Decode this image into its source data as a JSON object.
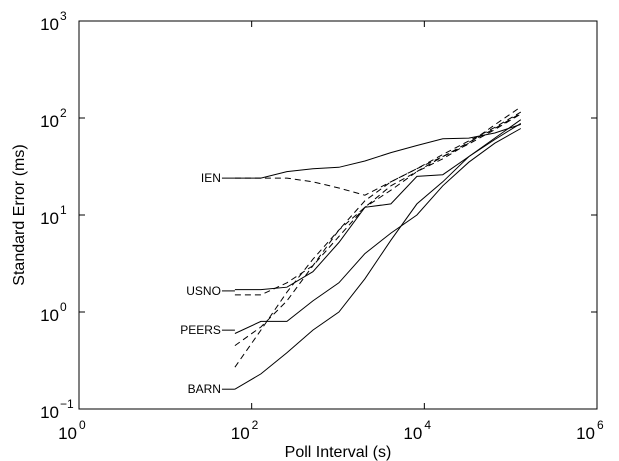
{
  "chart_data": {
    "type": "line",
    "title": "",
    "xlabel": "Poll Interval (s)",
    "ylabel": "Standard Error (ms)",
    "xscale": "log",
    "yscale": "log",
    "xlim": [
      1,
      1000000
    ],
    "ylim": [
      0.1,
      1000
    ],
    "grid": false,
    "legend": "none",
    "x_ticks": [
      {
        "base": "10",
        "exp": "0",
        "value": 1
      },
      {
        "base": "10",
        "exp": "2",
        "value": 100
      },
      {
        "base": "10",
        "exp": "4",
        "value": 10000
      },
      {
        "base": "10",
        "exp": "6",
        "value": 1000000
      }
    ],
    "y_ticks": [
      {
        "base": "10",
        "exp": "−1",
        "value": 0.1
      },
      {
        "base": "10",
        "exp": "0",
        "value": 1
      },
      {
        "base": "10",
        "exp": "1",
        "value": 10
      },
      {
        "base": "10",
        "exp": "2",
        "value": 100
      },
      {
        "base": "10",
        "exp": "3",
        "value": 1000
      }
    ],
    "annotations": [
      {
        "text": "IEN",
        "x": 64,
        "y": 24
      },
      {
        "text": "USNO",
        "x": 64,
        "y": 1.65
      },
      {
        "text": "PEERS",
        "x": 64,
        "y": 0.65
      },
      {
        "text": "BARN",
        "x": 64,
        "y": 0.16
      }
    ],
    "series": [
      {
        "style": "solid",
        "x": [
          64,
          128,
          256,
          512,
          1024,
          2048,
          4096,
          8192,
          16384,
          32768,
          65536,
          131072
        ],
        "y": [
          24,
          24,
          28,
          30,
          31,
          36,
          44,
          52,
          61,
          62,
          70,
          86
        ]
      },
      {
        "style": "dashed",
        "x": [
          64,
          128,
          256,
          512,
          1024,
          2048,
          4096,
          8192,
          16384,
          32768,
          65536,
          131072
        ],
        "y": [
          24,
          24,
          24,
          22,
          19,
          16,
          22,
          30,
          40,
          54,
          76,
          110
        ]
      },
      {
        "style": "solid",
        "x": [
          64,
          128,
          256,
          512,
          1024,
          2048,
          4096,
          8192,
          16384,
          32768,
          65536,
          131072
        ],
        "y": [
          1.7,
          1.7,
          1.8,
          2.6,
          5.2,
          12,
          13,
          25,
          26,
          40,
          62,
          96
        ]
      },
      {
        "style": "dashed",
        "x": [
          64,
          128,
          256,
          512,
          1024,
          2048,
          4096,
          8192,
          16384,
          32768,
          65536,
          131072
        ],
        "y": [
          1.5,
          1.5,
          2.0,
          3.0,
          6.0,
          12,
          18,
          28,
          38,
          55,
          85,
          130
        ]
      },
      {
        "style": "solid",
        "x": [
          64,
          128,
          256,
          512,
          1024,
          2048,
          4096,
          8192,
          16384,
          32768,
          65536,
          131072
        ],
        "y": [
          0.6,
          0.8,
          0.8,
          1.3,
          2.0,
          4.0,
          6.5,
          10,
          20,
          35,
          55,
          78
        ]
      },
      {
        "style": "dashed",
        "x": [
          64,
          128,
          256,
          512,
          1024,
          2048,
          4096,
          8192,
          16384,
          32768,
          65536,
          131072
        ],
        "y": [
          0.45,
          0.7,
          1.3,
          3.0,
          7.0,
          14,
          22,
          30,
          42,
          58,
          80,
          115
        ]
      },
      {
        "style": "dashed",
        "x": [
          64,
          128,
          256,
          512,
          1024,
          2048,
          4096,
          8192,
          16384,
          32768,
          65536,
          131072
        ],
        "y": [
          0.27,
          0.65,
          1.6,
          3.5,
          7.0,
          12,
          20,
          28,
          40,
          56,
          78,
          112
        ]
      },
      {
        "style": "solid",
        "x": [
          64,
          128,
          256,
          512,
          1024,
          2048,
          4096,
          8192,
          16384,
          32768,
          65536,
          131072
        ],
        "y": [
          0.16,
          0.23,
          0.38,
          0.65,
          1.0,
          2.2,
          5.5,
          13,
          22,
          40,
          60,
          88
        ]
      }
    ]
  }
}
